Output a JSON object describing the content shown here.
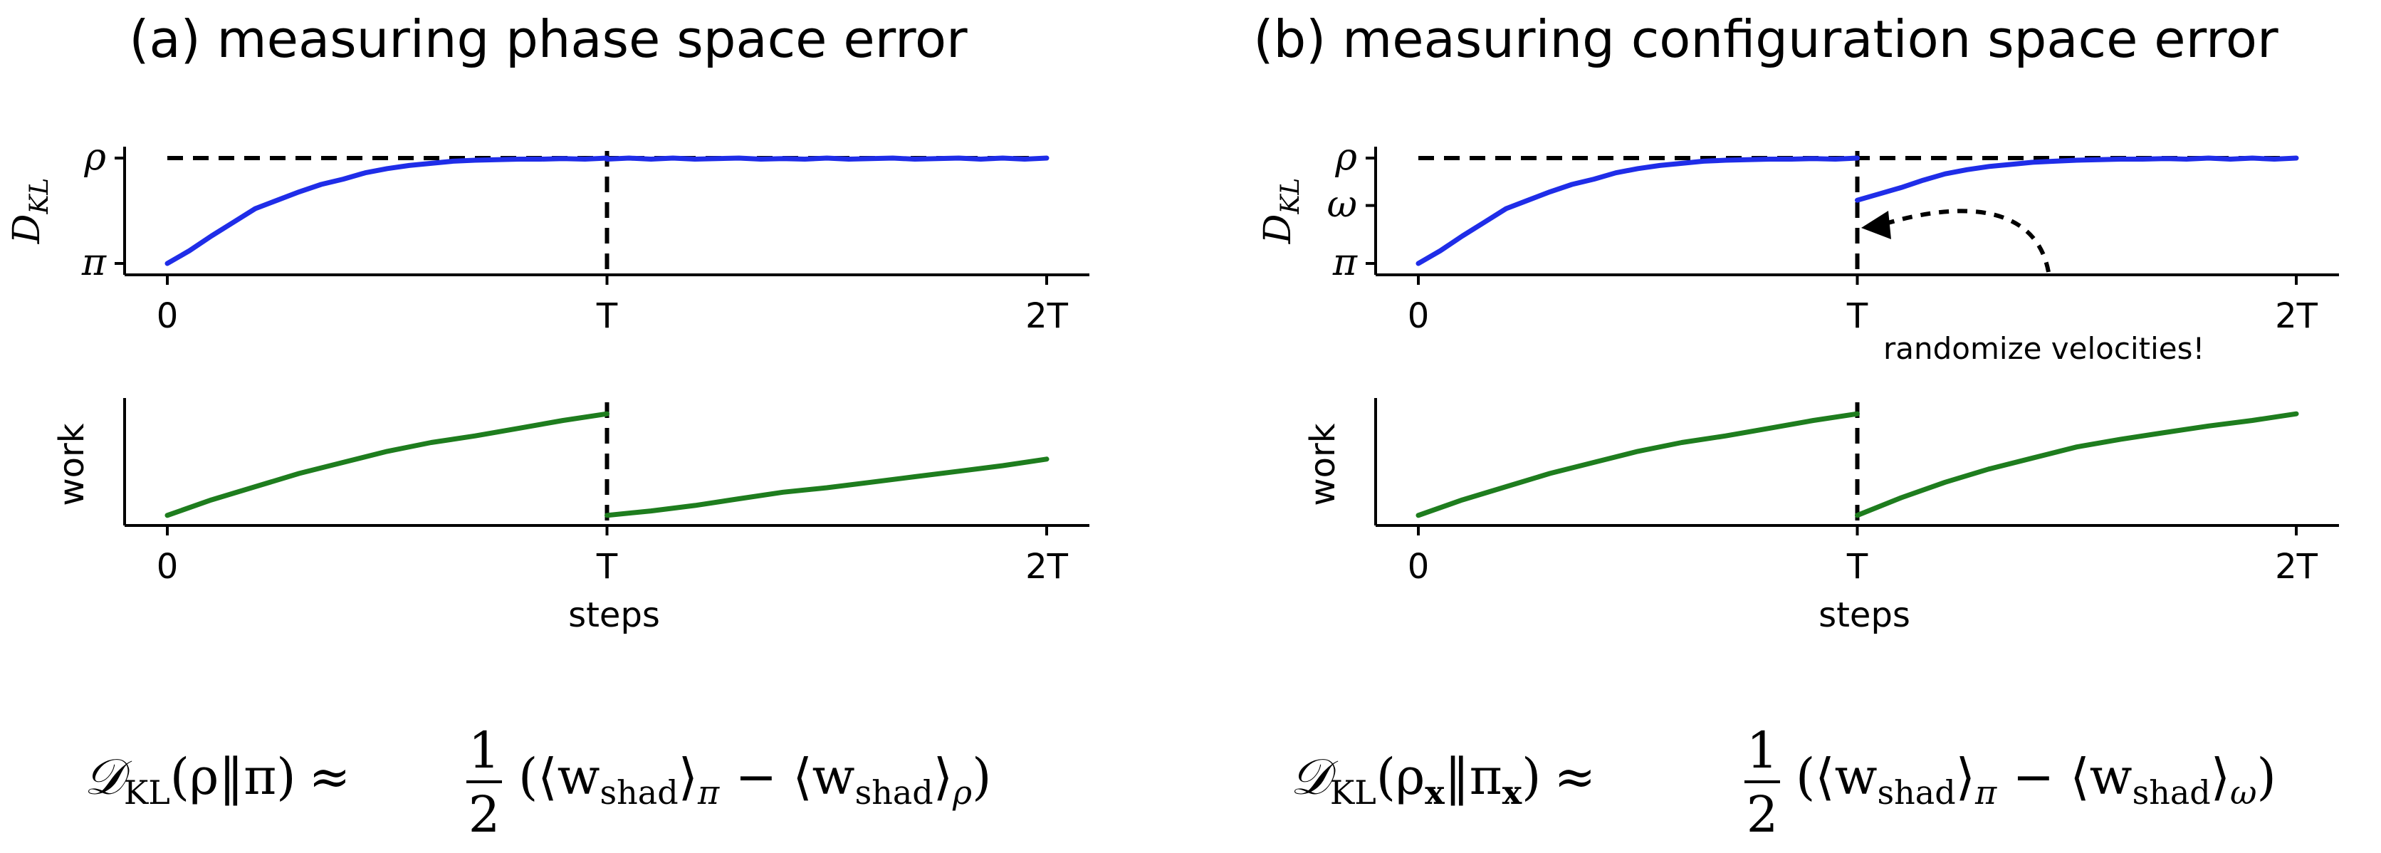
{
  "chart_data": [
    {
      "panel": "a",
      "title": "(a) measuring phase space error",
      "type": "line",
      "subplots": [
        {
          "ylabel": "D",
          "ylabel_sub": "KL",
          "yticks": [
            "π",
            "ρ"
          ],
          "xticks": [
            "0",
            "T",
            "2T"
          ],
          "xlim": [
            0,
            2
          ],
          "ylim": [
            0,
            1
          ],
          "hline": {
            "y": 1,
            "style": "dashed",
            "color": "#000000"
          },
          "vline": {
            "x": 1,
            "style": "dashed",
            "color": "#000000"
          },
          "series": [
            {
              "color": "#1f2de8",
              "x": [
                0,
                0.05,
                0.1,
                0.15,
                0.2,
                0.25,
                0.3,
                0.35,
                0.4,
                0.45,
                0.5,
                0.55,
                0.6,
                0.65,
                0.7,
                0.75,
                0.8,
                0.85,
                0.9,
                0.95,
                1.0
              ],
              "y": [
                0,
                0.12,
                0.26,
                0.39,
                0.52,
                0.6,
                0.68,
                0.75,
                0.8,
                0.86,
                0.9,
                0.93,
                0.95,
                0.97,
                0.98,
                0.985,
                0.99,
                0.99,
                0.995,
                0.99,
                1.0
              ]
            },
            {
              "color": "#1f2de8",
              "x": [
                1.0,
                1.05,
                1.1,
                1.15,
                1.2,
                1.25,
                1.3,
                1.35,
                1.4,
                1.45,
                1.5,
                1.55,
                1.6,
                1.65,
                1.7,
                1.75,
                1.8,
                1.85,
                1.9,
                1.95,
                2.0
              ],
              "y": [
                0.99,
                1.0,
                0.99,
                1.0,
                0.99,
                0.995,
                1.0,
                0.99,
                0.995,
                0.99,
                1.0,
                0.99,
                0.995,
                1.0,
                0.99,
                0.995,
                1.0,
                0.99,
                1.0,
                0.99,
                1.0
              ]
            }
          ]
        },
        {
          "ylabel": "work",
          "xlabel": "steps",
          "xticks": [
            "0",
            "T",
            "2T"
          ],
          "xlim": [
            0,
            2
          ],
          "ylim": [
            0,
            1
          ],
          "vline": {
            "x": 1,
            "style": "dashed",
            "color": "#000000"
          },
          "series": [
            {
              "color": "#1e7d1e",
              "x": [
                0,
                0.1,
                0.2,
                0.3,
                0.4,
                0.5,
                0.6,
                0.7,
                0.8,
                0.9,
                1.0
              ],
              "y": [
                0.04,
                0.18,
                0.3,
                0.42,
                0.52,
                0.62,
                0.7,
                0.76,
                0.83,
                0.9,
                0.96
              ]
            },
            {
              "color": "#1e7d1e",
              "x": [
                1.0,
                1.1,
                1.2,
                1.3,
                1.4,
                1.5,
                1.6,
                1.7,
                1.8,
                1.9,
                2.0
              ],
              "y": [
                0.04,
                0.08,
                0.13,
                0.19,
                0.25,
                0.29,
                0.34,
                0.39,
                0.44,
                0.49,
                0.55
              ]
            }
          ]
        }
      ],
      "equation": {
        "lhs_D": "𝒟",
        "lhs_sub": "KL",
        "lhs_args": "(ρ‖π)",
        "approx": "≈",
        "frac_num": "1",
        "frac_den": "2",
        "open": "(⟨w",
        "w_sub": "shad",
        "close_term1": "⟩",
        "term1_sub": "π",
        "minus": " − ⟨w",
        "close_term2": "⟩",
        "term2_sub": "ρ",
        "end": ")"
      }
    },
    {
      "panel": "b",
      "title": "(b) measuring configuration space error",
      "type": "line",
      "subplots": [
        {
          "ylabel": "D",
          "ylabel_sub": "KL",
          "yticks": [
            "π",
            "ω",
            "ρ"
          ],
          "xticks": [
            "0",
            "T",
            "2T"
          ],
          "xlim": [
            0,
            2
          ],
          "ylim": [
            0,
            1
          ],
          "hline": {
            "y": 1,
            "style": "dashed",
            "color": "#000000"
          },
          "vline": {
            "x": 1,
            "style": "dashed",
            "color": "#000000"
          },
          "annotation": "randomize velocities!",
          "series": [
            {
              "color": "#1f2de8",
              "x": [
                0,
                0.05,
                0.1,
                0.15,
                0.2,
                0.25,
                0.3,
                0.35,
                0.4,
                0.45,
                0.5,
                0.55,
                0.6,
                0.65,
                0.7,
                0.75,
                0.8,
                0.85,
                0.9,
                0.95,
                1.0
              ],
              "y": [
                0,
                0.12,
                0.26,
                0.39,
                0.52,
                0.6,
                0.68,
                0.75,
                0.8,
                0.86,
                0.9,
                0.93,
                0.95,
                0.97,
                0.98,
                0.985,
                0.99,
                0.99,
                0.995,
                0.99,
                1.0
              ]
            },
            {
              "color": "#1f2de8",
              "x": [
                1.0,
                1.05,
                1.1,
                1.15,
                1.2,
                1.25,
                1.3,
                1.35,
                1.4,
                1.45,
                1.5,
                1.55,
                1.6,
                1.65,
                1.7,
                1.75,
                1.8,
                1.85,
                1.9,
                1.95,
                2.0
              ],
              "y": [
                0.6,
                0.66,
                0.72,
                0.79,
                0.85,
                0.89,
                0.92,
                0.94,
                0.96,
                0.97,
                0.98,
                0.985,
                0.99,
                0.99,
                0.995,
                0.99,
                1.0,
                0.99,
                1.0,
                0.99,
                1.0
              ]
            }
          ]
        },
        {
          "ylabel": "work",
          "xlabel": "steps",
          "xticks": [
            "0",
            "T",
            "2T"
          ],
          "xlim": [
            0,
            2
          ],
          "ylim": [
            0,
            1
          ],
          "vline": {
            "x": 1,
            "style": "dashed",
            "color": "#000000"
          },
          "series": [
            {
              "color": "#1e7d1e",
              "x": [
                0,
                0.1,
                0.2,
                0.3,
                0.4,
                0.5,
                0.6,
                0.7,
                0.8,
                0.9,
                1.0
              ],
              "y": [
                0.04,
                0.18,
                0.3,
                0.42,
                0.52,
                0.62,
                0.7,
                0.76,
                0.83,
                0.9,
                0.96
              ]
            },
            {
              "color": "#1e7d1e",
              "x": [
                1.0,
                1.1,
                1.2,
                1.3,
                1.4,
                1.5,
                1.6,
                1.7,
                1.8,
                1.9,
                2.0
              ],
              "y": [
                0.04,
                0.2,
                0.34,
                0.46,
                0.56,
                0.66,
                0.73,
                0.79,
                0.85,
                0.9,
                0.96
              ]
            }
          ]
        }
      ],
      "equation": {
        "lhs_D": "𝒟",
        "lhs_sub": "KL",
        "lhs_args_open": "(ρ",
        "args_sub1": "x",
        "args_mid": "‖π",
        "args_sub2": "x",
        "args_close": ")",
        "approx": "≈",
        "frac_num": "1",
        "frac_den": "2",
        "open": "(⟨w",
        "w_sub": "shad",
        "close_term1": "⟩",
        "term1_sub": "π",
        "minus": " − ⟨w",
        "close_term2": "⟩",
        "term2_sub": "ω",
        "end": ")"
      }
    }
  ]
}
